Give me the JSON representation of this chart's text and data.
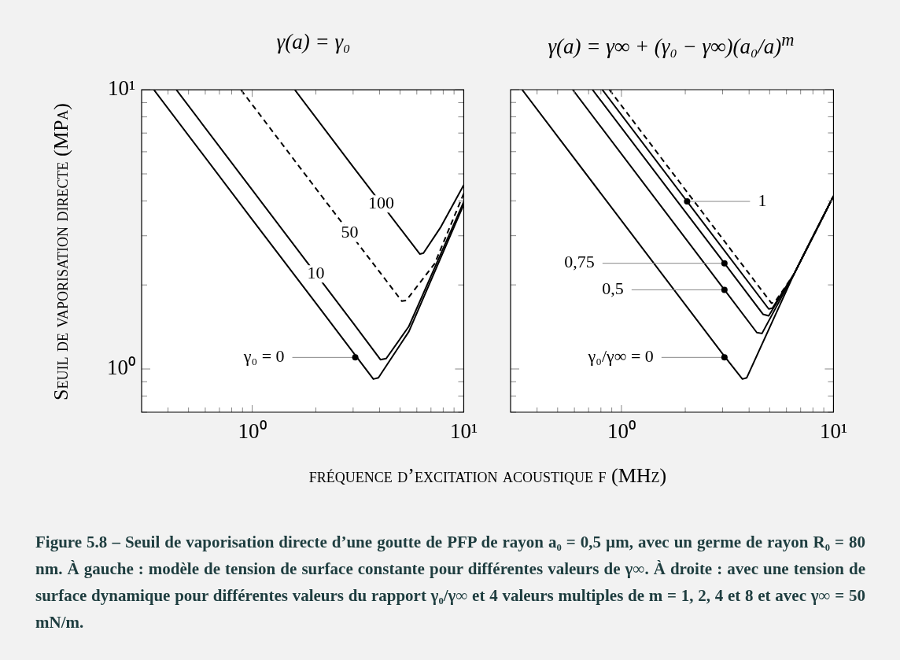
{
  "chart_data": [
    {
      "type": "line",
      "title": "γ(a) = γ₀",
      "xlabel": "fréquence d’excitation acoustique f (MHz)",
      "ylabel": "Seuil de vaporisation directe (MPa)",
      "log": "xy",
      "xlim": [
        0.3,
        10
      ],
      "ylim": [
        0.7,
        10
      ],
      "xticks": [
        {
          "value": 0.4,
          "label": null
        },
        {
          "value": 0.5,
          "label": null
        },
        {
          "value": 0.6,
          "label": null
        },
        {
          "value": 0.7,
          "label": null
        },
        {
          "value": 0.8,
          "label": null
        },
        {
          "value": 0.9,
          "label": null
        },
        {
          "value": 1,
          "label": "10⁰"
        },
        {
          "value": 2,
          "label": null
        },
        {
          "value": 3,
          "label": null
        },
        {
          "value": 4,
          "label": null
        },
        {
          "value": 5,
          "label": null
        },
        {
          "value": 6,
          "label": null
        },
        {
          "value": 7,
          "label": null
        },
        {
          "value": 8,
          "label": null
        },
        {
          "value": 9,
          "label": null
        },
        {
          "value": 10,
          "label": "10¹"
        }
      ],
      "yticks": [
        {
          "value": 0.7,
          "label": null
        },
        {
          "value": 0.8,
          "label": null
        },
        {
          "value": 0.9,
          "label": null
        },
        {
          "value": 1,
          "label": "10⁰"
        },
        {
          "value": 2,
          "label": null
        },
        {
          "value": 3,
          "label": null
        },
        {
          "value": 4,
          "label": null
        },
        {
          "value": 5,
          "label": null
        },
        {
          "value": 6,
          "label": null
        },
        {
          "value": 7,
          "label": null
        },
        {
          "value": 8,
          "label": null
        },
        {
          "value": 9,
          "label": null
        },
        {
          "value": 10,
          "label": "10¹"
        }
      ],
      "series": [
        {
          "color": "#000000",
          "line_style": "solid",
          "x": [
            0.343,
            1,
            2,
            3.74,
            3.95,
            5.5,
            10
          ],
          "values": [
            10,
            3.43,
            1.72,
            0.92,
            0.93,
            1.36,
            3.88
          ]
        },
        {
          "color": "#000000",
          "line_style": "solid",
          "x": [
            0.438,
            1,
            3,
            4.04,
            4.3,
            5.5,
            10
          ],
          "values": [
            10,
            4.38,
            1.46,
            1.08,
            1.09,
            1.42,
            3.97
          ]
        },
        {
          "color": "#000000",
          "line_style": "dashed",
          "x": [
            0.885,
            2,
            5.1,
            5.35,
            7.3,
            10
          ],
          "values": [
            10,
            4.43,
            1.75,
            1.76,
            2.39,
            4.25
          ]
        },
        {
          "color": "#000000",
          "line_style": "solid",
          "x": [
            1.59,
            3,
            6.2,
            6.45,
            7.8,
            10
          ],
          "values": [
            10,
            5.3,
            2.58,
            2.6,
            3.23,
            4.56
          ]
        }
      ],
      "annotations": [
        {
          "text": "γ₀ = 0",
          "x": 3.07,
          "y": 1.1
        },
        {
          "text": "10",
          "x": 2,
          "y": 2.19
        },
        {
          "text": "50",
          "x": 2.89,
          "y": 3.06
        },
        {
          "text": "100",
          "x": 4.07,
          "y": 3.9
        },
        "Figure 5.8 – Seuil de vaporisation directe d’une goutte de PFP de rayon a₀ = 0,5 µm, avec un germe de rayon R₀ = 80 nm. À gauche : modèle de tension de surface constante pour différentes valeurs de γ∞. À droite : avec une tension de surface dynamique pour différentes valeurs du rapport γ₀/γ∞ et 4 valeurs multiples de m = 1, 2, 4 et 8 et avec γ∞ = 50 mN/m."
      ]
    },
    {
      "type": "line",
      "title": "γ(a) = γ∞ + (γ₀ − γ∞)(a₀/a)$^{m}$",
      "log": "xy",
      "xlim": [
        0.3,
        10
      ],
      "ylim": [
        0.7,
        10
      ],
      "tick_labels": "x",
      "xticks": [
        {
          "value": 0.4,
          "label": null
        },
        {
          "value": 0.5,
          "label": null
        },
        {
          "value": 0.6,
          "label": null
        },
        {
          "value": 0.7,
          "label": null
        },
        {
          "value": 0.8,
          "label": null
        },
        {
          "value": 0.9,
          "label": null
        },
        {
          "value": 1,
          "label": "10⁰"
        },
        {
          "value": 2,
          "label": null
        },
        {
          "value": 3,
          "label": null
        },
        {
          "value": 4,
          "label": null
        },
        {
          "value": 5,
          "label": null
        },
        {
          "value": 6,
          "label": null
        },
        {
          "value": 7,
          "label": null
        },
        {
          "value": 8,
          "label": null
        },
        {
          "value": 9,
          "label": null
        },
        {
          "value": 10,
          "label": "10¹"
        }
      ],
      "yticks": [
        {
          "value": 0.7,
          "label": null
        },
        {
          "value": 0.8,
          "label": null
        },
        {
          "value": 0.9,
          "label": null
        },
        {
          "value": 1,
          "label": null
        },
        {
          "value": 2,
          "label": null
        },
        {
          "value": 3,
          "label": null
        },
        {
          "value": 4,
          "label": null
        },
        {
          "value": 5,
          "label": null
        },
        {
          "value": 6,
          "label": null
        },
        {
          "value": 7,
          "label": null
        },
        {
          "value": 8,
          "label": null
        },
        {
          "value": 9,
          "label": null
        },
        {
          "value": 10,
          "label": null
        }
      ],
      "series": [
        {
          "color": "#000000",
          "line_style": "solid",
          "x": [
            0.34,
            3.06,
            3.72,
            3.9,
            6.5,
            10
          ],
          "values": [
            10,
            1.11,
            0.92,
            0.93,
            2.18,
            4.16
          ]
        },
        {
          "color": "#000000",
          "line_style": "solid",
          "x": [
            0.589,
            3.06,
            4.35,
            4.6,
            6.5,
            10
          ],
          "values": [
            10,
            1.92,
            1.35,
            1.34,
            2.18,
            4.16
          ]
        },
        {
          "color": "#000000",
          "line_style": "solid",
          "x": [
            0.73,
            3.06,
            4.65,
            4.95,
            6.5,
            10
          ],
          "values": [
            10,
            2.39,
            1.57,
            1.55,
            2.18,
            4.16
          ]
        },
        {
          "color": "#000000",
          "line_style": "solid",
          "x": [
            0.812,
            2.04,
            4.95,
            5.15,
            6.5,
            10
          ],
          "values": [
            10,
            3.98,
            1.64,
            1.65,
            2.18,
            4.16
          ]
        },
        {
          "color": "#000000",
          "line_style": "dashed",
          "x": [
            0.877,
            5.1,
            5.3,
            6.5,
            10
          ],
          "values": [
            10,
            1.72,
            1.74,
            2.18,
            4.16
          ]
        }
      ],
      "annotations": [
        {
          "text": "γ₀/γ∞ = 0",
          "x": 3.06,
          "y": 1.1
        },
        {
          "text": "0,5",
          "x": 3.06,
          "y": 1.92
        },
        {
          "text": "0,75",
          "x": 3.06,
          "y": 2.39
        },
        {
          "text": "1",
          "x": 2.04,
          "y": 3.98
        }
      ]
    }
  ]
}
